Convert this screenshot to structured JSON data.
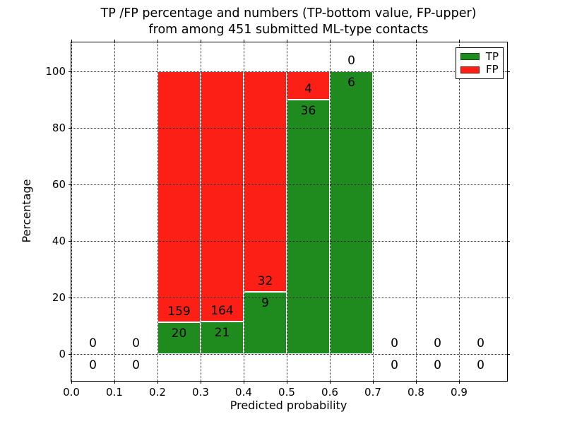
{
  "colors": {
    "background": "#ffffff",
    "text": "#000000",
    "tp_green": "#1f8b1f",
    "fp_red": "#fb1f15"
  },
  "chart_data": {
    "type": "bar",
    "stacked": true,
    "normalized_to_percent": true,
    "title": "TP /FP percentage and numbers (TP-bottom value, FP-upper)\nfrom among 451 submitted ML-type contacts",
    "xlabel": "Predicted probability",
    "ylabel": "Percentage",
    "total_contacts": 451,
    "xlim": [
      0,
      1.0115
    ],
    "ylim": [
      -9.6,
      110.2
    ],
    "xticks": [
      0,
      0.1,
      0.2,
      0.3,
      0.4,
      0.5,
      0.6,
      0.7,
      0.8,
      0.9
    ],
    "yticks": [
      0,
      20,
      40,
      60,
      80,
      100
    ],
    "grid": "dotted",
    "legend_position": "upper right",
    "series": [
      {
        "name": "TP",
        "color": "#1f8b1f"
      },
      {
        "name": "FP",
        "color": "#fb1f15"
      }
    ],
    "bins": [
      {
        "x0": 0.0,
        "x1": 0.1,
        "tp": 0,
        "fp": 0
      },
      {
        "x0": 0.1,
        "x1": 0.2,
        "tp": 0,
        "fp": 0
      },
      {
        "x0": 0.2,
        "x1": 0.3,
        "tp": 20,
        "fp": 159
      },
      {
        "x0": 0.3,
        "x1": 0.4,
        "tp": 21,
        "fp": 164
      },
      {
        "x0": 0.4,
        "x1": 0.5,
        "tp": 9,
        "fp": 32
      },
      {
        "x0": 0.5,
        "x1": 0.6,
        "tp": 36,
        "fp": 4
      },
      {
        "x0": 0.6,
        "x1": 0.7,
        "tp": 6,
        "fp": 0
      },
      {
        "x0": 0.7,
        "x1": 0.8,
        "tp": 0,
        "fp": 0
      },
      {
        "x0": 0.8,
        "x1": 0.9,
        "tp": 0,
        "fp": 0
      },
      {
        "x0": 0.9,
        "x1": 1.0,
        "tp": 0,
        "fp": 0
      }
    ]
  }
}
